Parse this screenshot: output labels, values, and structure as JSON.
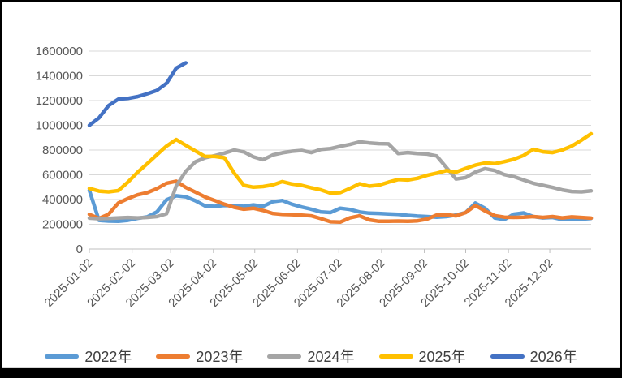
{
  "frame": {
    "background_color": "#000000",
    "card_color": "#FFFFFF",
    "bottom_strip_color": "#D6D6D6"
  },
  "chart_data": {
    "type": "line",
    "title": "",
    "xlabel": "",
    "ylabel": "",
    "grid": true,
    "gridline_color": "#D9D9D9",
    "axis_line_color": "#BFBFBF",
    "axis_label_color": "#595959",
    "legend_position": "bottom",
    "y_axis": {
      "min": 0,
      "max": 1600000,
      "step": 200000,
      "tick_labels": [
        "0",
        "200000",
        "400000",
        "600000",
        "800000",
        "1000000",
        "1200000",
        "1400000",
        "1600000"
      ]
    },
    "x_axis": {
      "tick_labels": [
        "2025-01-02",
        "2025-02-02",
        "2025-03-02",
        "2025-04-02",
        "2025-05-02",
        "2025-06-02",
        "2025-07-02",
        "2025-08-02",
        "2025-09-02",
        "2025-10-02",
        "2025-11-02",
        "2025-12-02"
      ],
      "label_rotation_deg": -45
    },
    "sampling_note": "values estimated weekly from plotted daily lines",
    "x_dates": [
      "2025-01-02",
      "2025-01-09",
      "2025-01-16",
      "2025-01-23",
      "2025-01-30",
      "2025-02-06",
      "2025-02-13",
      "2025-02-20",
      "2025-02-27",
      "2025-03-06",
      "2025-03-13",
      "2025-03-20",
      "2025-03-27",
      "2025-04-03",
      "2025-04-10",
      "2025-04-17",
      "2025-04-24",
      "2025-05-01",
      "2025-05-08",
      "2025-05-15",
      "2025-05-22",
      "2025-05-29",
      "2025-06-05",
      "2025-06-12",
      "2025-06-19",
      "2025-06-26",
      "2025-07-03",
      "2025-07-10",
      "2025-07-17",
      "2025-07-24",
      "2025-07-31",
      "2025-08-07",
      "2025-08-14",
      "2025-08-21",
      "2025-08-28",
      "2025-09-04",
      "2025-09-11",
      "2025-09-18",
      "2025-09-25",
      "2025-10-02",
      "2025-10-09",
      "2025-10-16",
      "2025-10-23",
      "2025-10-30",
      "2025-11-06",
      "2025-11-13",
      "2025-11-20",
      "2025-11-27",
      "2025-12-04",
      "2025-12-11",
      "2025-12-18",
      "2025-12-25",
      "2025-12-31"
    ],
    "series": [
      {
        "name": "2022年",
        "color": "#5B9BD5",
        "values": [
          475000,
          232000,
          226000,
          225000,
          232000,
          248000,
          260000,
          300000,
          398000,
          430000,
          422000,
          390000,
          348000,
          345000,
          352000,
          350000,
          345000,
          357000,
          345000,
          382000,
          392000,
          362000,
          340000,
          322000,
          300000,
          295000,
          330000,
          320000,
          300000,
          290000,
          288000,
          284000,
          280000,
          272000,
          266000,
          262000,
          258000,
          262000,
          275000,
          295000,
          372000,
          330000,
          252000,
          238000,
          282000,
          292000,
          262000,
          252000,
          256000,
          238000,
          240000,
          242000,
          248000
        ]
      },
      {
        "name": "2023年",
        "color": "#ED7D31",
        "values": [
          280000,
          247000,
          282000,
          372000,
          408000,
          438000,
          456000,
          488000,
          532000,
          548000,
          498000,
          460000,
          420000,
          392000,
          362000,
          338000,
          322000,
          330000,
          312000,
          288000,
          280000,
          278000,
          274000,
          268000,
          246000,
          220000,
          218000,
          252000,
          268000,
          236000,
          224000,
          225000,
          226000,
          224000,
          228000,
          242000,
          275000,
          278000,
          268000,
          295000,
          352000,
          308000,
          270000,
          258000,
          256000,
          258000,
          262000,
          256000,
          262000,
          252000,
          260000,
          255000,
          250000
        ]
      },
      {
        "name": "2024年",
        "color": "#A5A5A5",
        "values": [
          250000,
          245000,
          248000,
          252000,
          255000,
          252000,
          256000,
          262000,
          285000,
          510000,
          628000,
          705000,
          738000,
          755000,
          775000,
          800000,
          785000,
          745000,
          722000,
          760000,
          778000,
          790000,
          797000,
          780000,
          805000,
          812000,
          830000,
          845000,
          866000,
          858000,
          852000,
          850000,
          772000,
          780000,
          772000,
          768000,
          752000,
          660000,
          566000,
          578000,
          622000,
          650000,
          635000,
          602000,
          585000,
          558000,
          532000,
          515000,
          498000,
          478000,
          465000,
          462000,
          470000
        ]
      },
      {
        "name": "2025年",
        "color": "#FFC000",
        "values": [
          490000,
          468000,
          462000,
          472000,
          540000,
          620000,
          690000,
          762000,
          832000,
          885000,
          838000,
          792000,
          748000,
          748000,
          738000,
          615000,
          515000,
          500000,
          505000,
          518000,
          545000,
          525000,
          515000,
          495000,
          478000,
          452000,
          456000,
          490000,
          528000,
          508000,
          516000,
          540000,
          562000,
          558000,
          572000,
          596000,
          614000,
          634000,
          622000,
          652000,
          678000,
          696000,
          690000,
          706000,
          726000,
          756000,
          806000,
          786000,
          780000,
          800000,
          832000,
          880000,
          932000
        ]
      },
      {
        "name": "2026年",
        "color": "#4472C4",
        "values": [
          1000000,
          1060000,
          1160000,
          1212000,
          1218000,
          1232000,
          1255000,
          1282000,
          1340000,
          1462000,
          1505000
        ]
      }
    ],
    "legend_items": [
      "2022年",
      "2023年",
      "2024年",
      "2025年",
      "2026年"
    ]
  }
}
